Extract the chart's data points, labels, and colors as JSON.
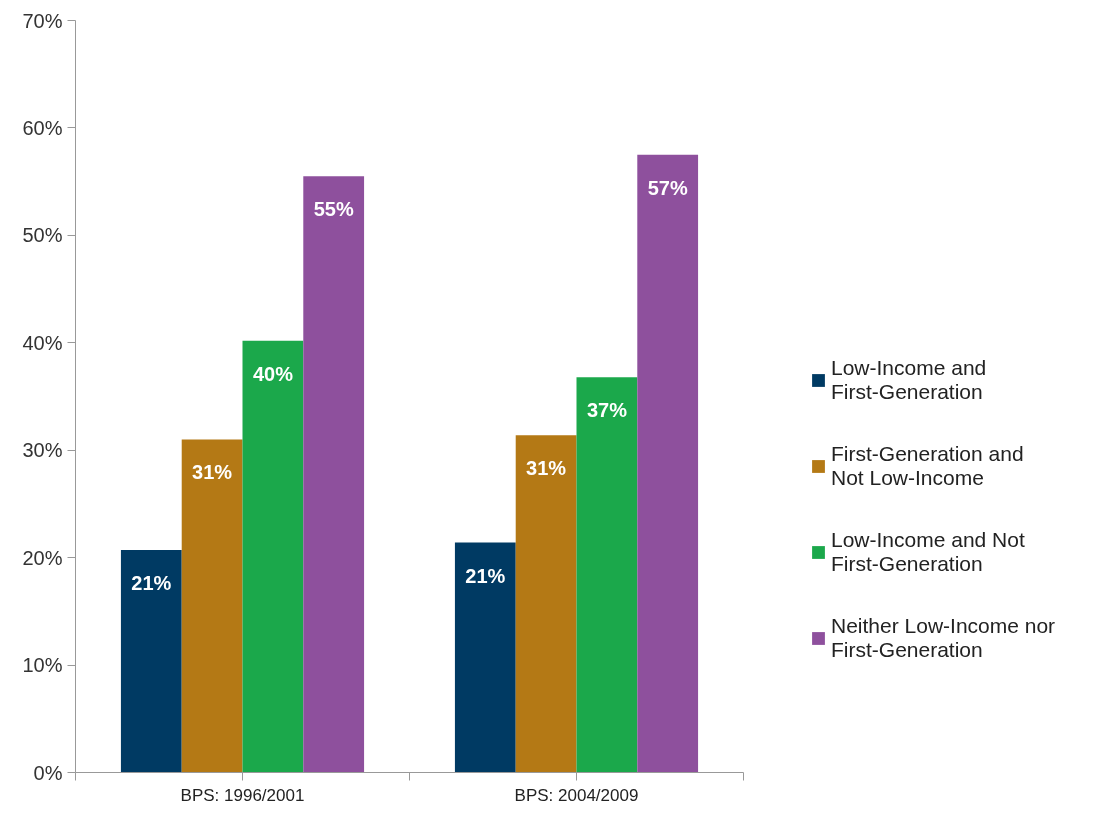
{
  "chart_data": {
    "type": "bar",
    "categories": [
      "BPS: 1996/2001",
      "BPS: 2004/2009"
    ],
    "series": [
      {
        "name": "Low-Income and First-Generation",
        "color": "#003a63",
        "values": [
          20.7,
          21.4
        ],
        "value_labels": [
          "21%",
          "21%"
        ]
      },
      {
        "name": "First-Generation and Not Low-Income",
        "color": "#b47915",
        "values": [
          31.0,
          31.4
        ],
        "value_labels": [
          "31%",
          "31%"
        ]
      },
      {
        "name": "Low-Income and Not First-Generation",
        "color": "#1ba84b",
        "values": [
          40.2,
          36.8
        ],
        "value_labels": [
          "40%",
          "37%"
        ]
      },
      {
        "name": "Neither Low-Income nor First-Generation",
        "color": "#8e509d",
        "values": [
          55.5,
          57.5
        ],
        "value_labels": [
          "55%",
          "57%"
        ]
      }
    ],
    "ylim": [
      0,
      70
    ],
    "yticks": [
      {
        "value": 0,
        "label": "0%"
      },
      {
        "value": 10,
        "label": "10%"
      },
      {
        "value": 20,
        "label": "20%"
      },
      {
        "value": 30,
        "label": "30%"
      },
      {
        "value": 40,
        "label": "40%"
      },
      {
        "value": 50,
        "label": "50%"
      },
      {
        "value": 60,
        "label": "60%"
      },
      {
        "value": 70,
        "label": "70%"
      }
    ],
    "grid": false,
    "legend": "right"
  }
}
